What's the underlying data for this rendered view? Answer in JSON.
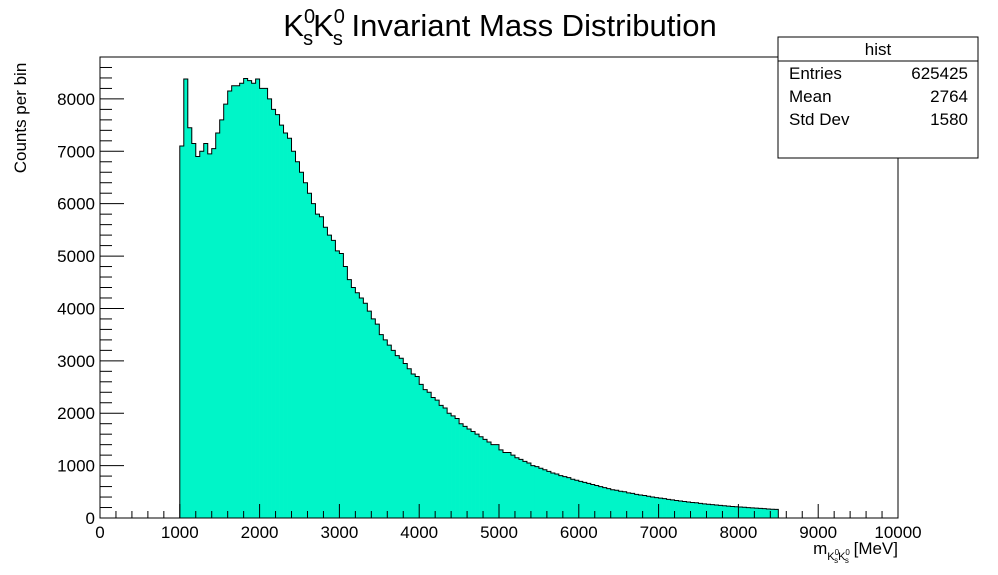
{
  "title": {
    "k1": "K",
    "k1_sup": "0",
    "k1_sub": "s",
    "k2": "K",
    "k2_sup": "0",
    "k2_sub": "s",
    "rest": " Invariant Mass Distribution"
  },
  "stats_box": {
    "name": "hist",
    "rows": [
      {
        "label": "Entries",
        "value": "625425"
      },
      {
        "label": "Mean",
        "value": "2764"
      },
      {
        "label": "Std Dev",
        "value": "1580"
      }
    ]
  },
  "colors": {
    "fill": "#00f5c8",
    "outline": "#000000",
    "background": "#ffffff"
  },
  "chart_data": {
    "type": "bar",
    "title": "K_s^0 K_s^0 Invariant Mass Distribution",
    "xlabel": "m_{K_s^0 K_s^0} [MeV]",
    "ylabel": "Counts per bin",
    "xlim": [
      0,
      10000
    ],
    "ylim": [
      0,
      8800
    ],
    "x_ticks": [
      "0",
      "1000",
      "2000",
      "3000",
      "4000",
      "5000",
      "6000",
      "7000",
      "8000",
      "9000",
      "10000"
    ],
    "y_ticks": [
      "0",
      "1000",
      "2000",
      "3000",
      "4000",
      "5000",
      "6000",
      "7000",
      "8000"
    ],
    "y_tick_values": [
      0,
      1000,
      2000,
      3000,
      4000,
      5000,
      6000,
      7000,
      8000
    ],
    "grid": false,
    "legend": "none",
    "bin_start": 1000,
    "bin_width": 50,
    "values": [
      7100,
      8380,
      7450,
      7150,
      6900,
      7000,
      7150,
      6950,
      7050,
      7350,
      7600,
      7900,
      8150,
      8250,
      8250,
      8300,
      8390,
      8350,
      8300,
      8380,
      8200,
      8200,
      8000,
      7800,
      7700,
      7500,
      7350,
      7250,
      7000,
      6800,
      6600,
      6400,
      6200,
      6000,
      5800,
      5750,
      5550,
      5400,
      5300,
      5100,
      5050,
      4800,
      4550,
      4400,
      4300,
      4200,
      4100,
      3950,
      3800,
      3700,
      3500,
      3400,
      3300,
      3200,
      3100,
      3050,
      2950,
      2850,
      2750,
      2700,
      2550,
      2450,
      2400,
      2300,
      2250,
      2150,
      2100,
      2000,
      1950,
      1900,
      1800,
      1750,
      1700,
      1650,
      1600,
      1550,
      1500,
      1450,
      1400,
      1400,
      1300,
      1250,
      1250,
      1200,
      1150,
      1120,
      1080,
      1050,
      1000,
      980,
      950,
      920,
      890,
      860,
      840,
      810,
      790,
      770,
      740,
      720,
      700,
      680,
      660,
      640,
      620,
      600,
      580,
      560,
      540,
      530,
      510,
      500,
      480,
      470,
      450,
      440,
      430,
      415,
      400,
      390,
      380,
      370,
      355,
      345,
      335,
      325,
      315,
      305,
      295,
      290,
      280,
      270,
      262,
      255,
      248,
      240,
      233,
      227,
      220,
      215,
      210,
      204,
      198,
      193,
      188,
      183,
      178,
      173,
      168,
      164
    ]
  }
}
